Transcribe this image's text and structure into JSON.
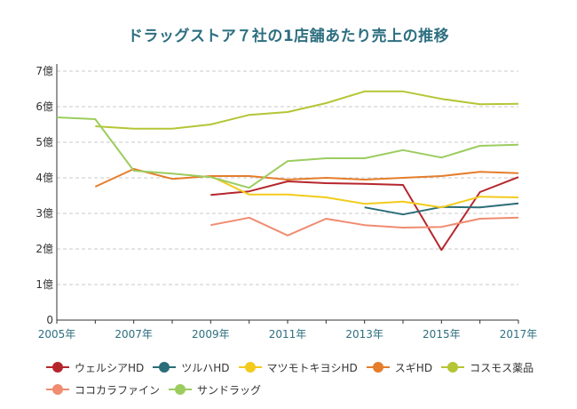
{
  "chart_data": {
    "type": "line",
    "title": "ドラッグストア７社の1店舗あたり売上の推移",
    "ylim": [
      0,
      7
    ],
    "xlim": [
      2005,
      2017
    ],
    "y_tick_labels": [
      "0",
      "1億",
      "2億",
      "3億",
      "4億",
      "5億",
      "6億",
      "7億"
    ],
    "x_tick_labels": [
      "2005年",
      "2007年",
      "2009年",
      "2011年",
      "2013年",
      "2015年",
      "2017年"
    ],
    "grid": true,
    "legend_position": "bottom",
    "series": [
      {
        "name": "ウェルシアHD",
        "color": "#b5262c",
        "points": [
          [
            2009,
            3.52
          ],
          [
            2010,
            3.62
          ],
          [
            2011,
            3.9
          ],
          [
            2012,
            3.85
          ],
          [
            2013,
            3.83
          ],
          [
            2014,
            3.8
          ],
          [
            2015,
            1.97
          ],
          [
            2016,
            3.6
          ],
          [
            2017,
            4.02
          ]
        ]
      },
      {
        "name": "ツルハHD",
        "color": "#2b6d78",
        "points": [
          [
            2013,
            3.17
          ],
          [
            2014,
            2.97
          ],
          [
            2015,
            3.18
          ],
          [
            2016,
            3.17
          ],
          [
            2017,
            3.28
          ]
        ]
      },
      {
        "name": "マツモトキヨシHD",
        "color": "#f2cb1d",
        "points": [
          [
            2009,
            4.05
          ],
          [
            2010,
            3.53
          ],
          [
            2011,
            3.53
          ],
          [
            2012,
            3.45
          ],
          [
            2013,
            3.27
          ],
          [
            2014,
            3.33
          ],
          [
            2015,
            3.17
          ],
          [
            2016,
            3.47
          ],
          [
            2017,
            3.45
          ]
        ]
      },
      {
        "name": "スギHD",
        "color": "#e57d2b",
        "points": [
          [
            2006,
            3.75
          ],
          [
            2007,
            4.25
          ],
          [
            2008,
            3.97
          ],
          [
            2009,
            4.05
          ],
          [
            2010,
            4.05
          ],
          [
            2011,
            3.95
          ],
          [
            2012,
            4.0
          ],
          [
            2013,
            3.95
          ],
          [
            2014,
            4.0
          ],
          [
            2015,
            4.05
          ],
          [
            2016,
            4.17
          ],
          [
            2017,
            4.13
          ]
        ]
      },
      {
        "name": "コスモス薬品",
        "color": "#b5c535",
        "points": [
          [
            2006,
            5.45
          ],
          [
            2007,
            5.38
          ],
          [
            2008,
            5.38
          ],
          [
            2009,
            5.5
          ],
          [
            2010,
            5.77
          ],
          [
            2011,
            5.85
          ],
          [
            2012,
            6.1
          ],
          [
            2013,
            6.43
          ],
          [
            2014,
            6.43
          ],
          [
            2015,
            6.22
          ],
          [
            2016,
            6.07
          ],
          [
            2017,
            6.08
          ]
        ]
      },
      {
        "name": "ココカラファイン",
        "color": "#f08c70",
        "points": [
          [
            2009,
            2.67
          ],
          [
            2010,
            2.88
          ],
          [
            2011,
            2.38
          ],
          [
            2012,
            2.85
          ],
          [
            2013,
            2.67
          ],
          [
            2014,
            2.6
          ],
          [
            2015,
            2.62
          ],
          [
            2016,
            2.85
          ],
          [
            2017,
            2.88
          ]
        ]
      },
      {
        "name": "サンドラッグ",
        "color": "#9ccc5f",
        "points": [
          [
            2005,
            5.7
          ],
          [
            2006,
            5.65
          ],
          [
            2007,
            4.2
          ],
          [
            2008,
            4.12
          ],
          [
            2009,
            4.02
          ],
          [
            2010,
            3.72
          ],
          [
            2011,
            4.47
          ],
          [
            2012,
            4.55
          ],
          [
            2013,
            4.55
          ],
          [
            2014,
            4.78
          ],
          [
            2015,
            4.57
          ],
          [
            2016,
            4.9
          ],
          [
            2017,
            4.93
          ]
        ]
      }
    ]
  }
}
